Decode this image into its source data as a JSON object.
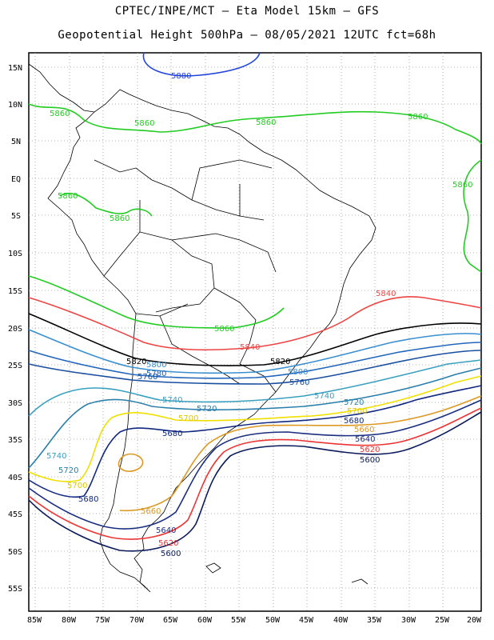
{
  "header": {
    "line1": "CPTEC/INPE/MCT –  Eta Model 15km – GFS",
    "line2": "Geopotential Height 500hPa – 08/05/2021 12UTC fct=68h"
  },
  "axes": {
    "lat_labels": [
      "15N",
      "10N",
      "5N",
      "EQ",
      "5S",
      "10S",
      "15S",
      "20S",
      "25S",
      "30S",
      "35S",
      "40S",
      "45S",
      "50S",
      "55S"
    ],
    "lon_labels": [
      "85W",
      "80W",
      "75W",
      "70W",
      "65W",
      "60W",
      "55W",
      "50W",
      "45W",
      "40W",
      "35W",
      "30W",
      "25W",
      "20W"
    ]
  },
  "contours": [
    {
      "value": "5880",
      "color": "#2244dd"
    },
    {
      "value": "5860",
      "color": "#22cc22"
    },
    {
      "value": "5840",
      "color": "#ee4444"
    },
    {
      "value": "5820",
      "color": "#000000"
    },
    {
      "value": "5800",
      "color": "#3a8fcf"
    },
    {
      "value": "5780",
      "color": "#2266bb"
    },
    {
      "value": "5760",
      "color": "#1a4fa0"
    },
    {
      "value": "5740",
      "color": "#3aa0c0"
    },
    {
      "value": "5720",
      "color": "#2a7faa"
    },
    {
      "value": "5700",
      "color": "#f0e000"
    },
    {
      "value": "5680",
      "color": "#102880"
    },
    {
      "value": "5660",
      "color": "#dd9922"
    },
    {
      "value": "5640",
      "color": "#1a2e80"
    },
    {
      "value": "5620",
      "color": "#ee3333"
    },
    {
      "value": "5600",
      "color": "#0a1a5a"
    }
  ],
  "labels": {
    "l5880": "5880",
    "l5860a": "5860",
    "l5860b": "5860",
    "l5860c": "5860",
    "l5860d": "5860",
    "l5860e": "5860",
    "l5860f": "5860",
    "l5860g": "5860",
    "l5860h": "5860",
    "l5840a": "5840",
    "l5840b": "5840",
    "l5820a": "5820",
    "l5820b": "5820",
    "l5800a": "5800",
    "l5800b": "5800",
    "l5780a": "5780",
    "l5760a": "5760",
    "l5760b": "5760",
    "l5740a": "5740",
    "l5740b": "5740",
    "l5740c": "5740",
    "l5720a": "5720",
    "l5720b": "5720",
    "l5720c": "5720",
    "l5700a": "5700",
    "l5700b": "5700",
    "l5700c": "5700",
    "l5680a": "5680",
    "l5680b": "5680",
    "l5680c": "5680",
    "l5660a": "5660",
    "l5660b": "5660",
    "l5640a": "5640",
    "l5640b": "5640",
    "l5620a": "5620",
    "l5620b": "5620",
    "l5600a": "5600",
    "l5600b": "5600"
  }
}
